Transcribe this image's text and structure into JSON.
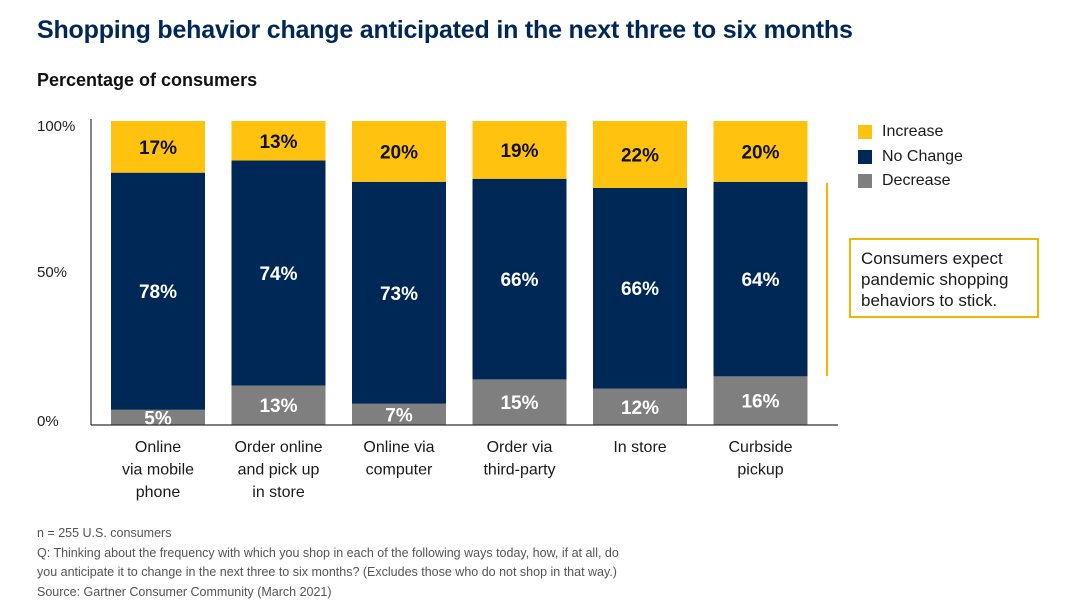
{
  "title": "Shopping behavior change anticipated in the next three to six months",
  "subtitle": "Percentage of consumers",
  "colors": {
    "increase": "#FFC20E",
    "no_change": "#002856",
    "decrease": "#7F7F7F",
    "callout_border": "#F2B600"
  },
  "legend": [
    {
      "label": "Increase",
      "color": "#FFC20E"
    },
    {
      "label": "No Change",
      "color": "#002856"
    },
    {
      "label": "Decrease",
      "color": "#7F7F7F"
    }
  ],
  "callout": {
    "lines": [
      "Consumers expect",
      "pandemic shopping",
      "behaviors to stick."
    ]
  },
  "footnotes": [
    "n = 255 U.S. consumers",
    "Q: Thinking about the frequency with which you shop in each of the following ways today, how, if at all, do",
    "you anticipate it to change in the next three to six months? (Excludes those who do not shop in that way.)",
    "Source: Gartner Consumer Community (March 2021)"
  ],
  "chart_data": {
    "type": "bar",
    "stacked": true,
    "categories": [
      [
        "Online",
        "via mobile",
        "phone"
      ],
      [
        "Order online",
        "and pick up",
        "in store"
      ],
      [
        "Online via",
        "computer"
      ],
      [
        "Order via",
        "third-party"
      ],
      [
        "In store"
      ],
      [
        "Curbside",
        "pickup"
      ]
    ],
    "series": [
      {
        "name": "Decrease",
        "values": [
          5,
          13,
          7,
          15,
          12,
          16
        ]
      },
      {
        "name": "No Change",
        "values": [
          78,
          74,
          73,
          66,
          66,
          64
        ]
      },
      {
        "name": "Increase",
        "values": [
          17,
          13,
          20,
          19,
          22,
          20
        ]
      }
    ],
    "yticks": [
      "0%",
      "50%",
      "100%"
    ],
    "ytick_values": [
      0,
      50,
      100
    ],
    "ylim": [
      0,
      100
    ],
    "grid": false,
    "legend_position": "right"
  }
}
